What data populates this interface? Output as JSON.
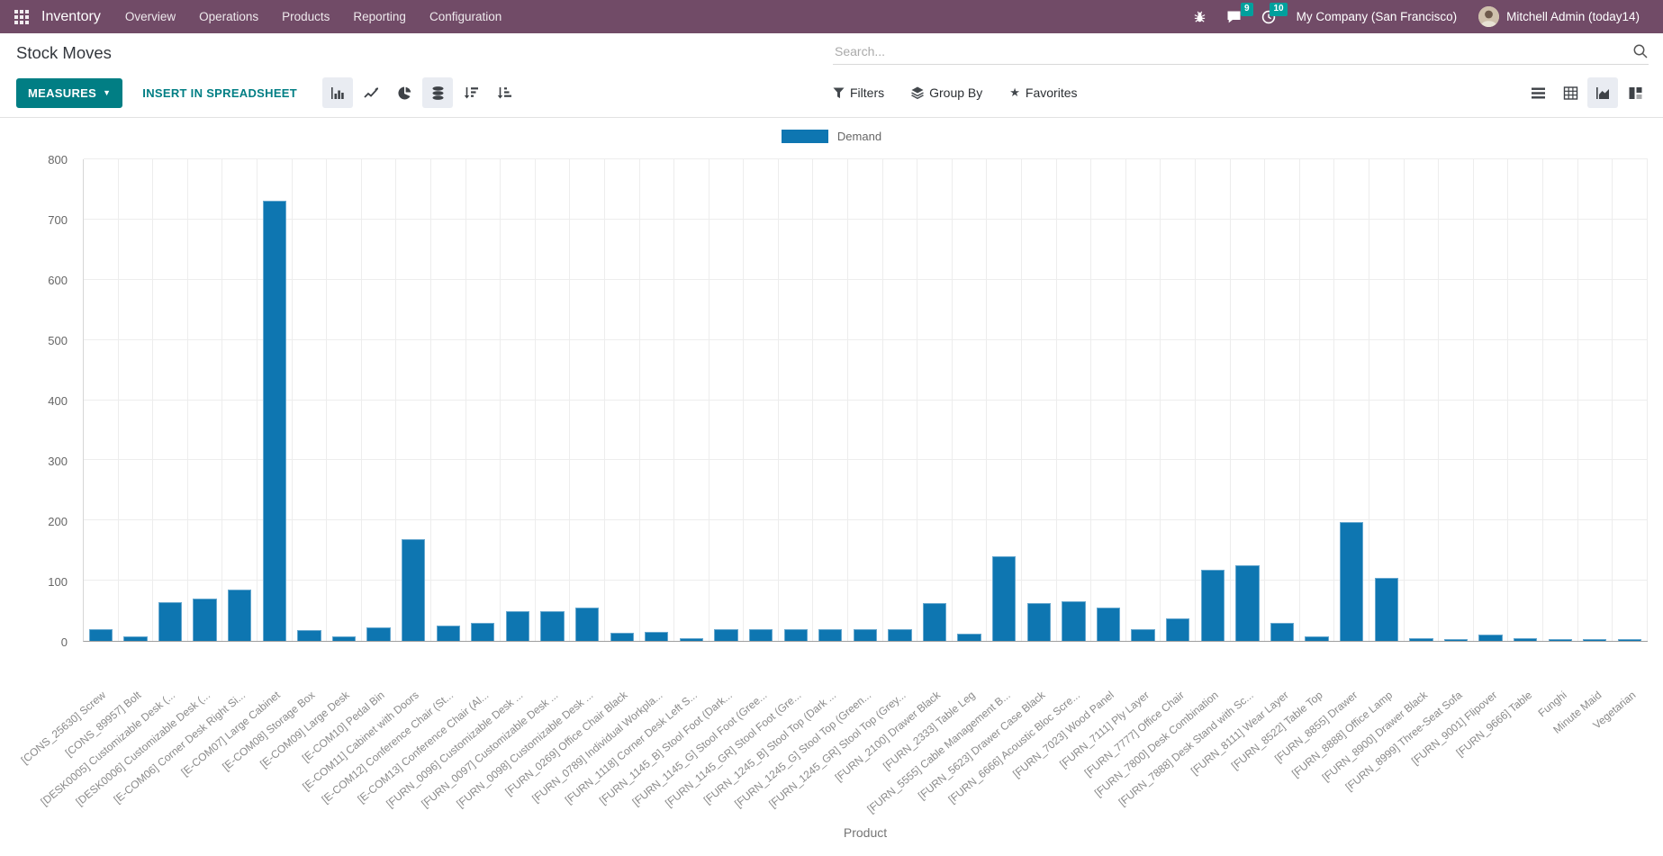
{
  "topbar": {
    "app_name": "Inventory",
    "menu_items": [
      "Overview",
      "Operations",
      "Products",
      "Reporting",
      "Configuration"
    ],
    "messages_badge": "9",
    "activities_badge": "10",
    "company": "My Company (San Francisco)",
    "user": "Mitchell Admin (today14)"
  },
  "control_panel": {
    "title": "Stock Moves",
    "search_placeholder": "Search...",
    "measures_label": "MEASURES",
    "insert_label": "INSERT IN SPREADSHEET",
    "filters_label": "Filters",
    "group_by_label": "Group By",
    "favorites_label": "Favorites"
  },
  "colors": {
    "topbar_bg": "#714B67",
    "accent_teal": "#017e84",
    "badge_teal": "#00a09d",
    "bar_fill": "#0e76b1",
    "bar_border": "#67a8cf"
  },
  "chart_data": {
    "type": "bar",
    "title": "",
    "legend": [
      "Demand"
    ],
    "legend_position": "top",
    "xlabel": "Product",
    "ylabel": "",
    "ylim": [
      0,
      800
    ],
    "ytick_step": 100,
    "grid": true,
    "bar_color": "#0e76b1",
    "bar_border": "#67a8cf",
    "categories": [
      "[CONS_25630] Screw",
      "[CONS_89957] Bolt",
      "[DESK0005] Customizable Desk (...",
      "[DESK0006] Customizable Desk (...",
      "[E-COM06] Corner Desk Right Si...",
      "[E-COM07] Large Cabinet",
      "[E-COM08] Storage Box",
      "[E-COM09] Large Desk",
      "[E-COM10] Pedal Bin",
      "[E-COM11] Cabinet with Doors",
      "[E-COM12] Conference Chair (St...",
      "[E-COM13] Conference Chair (Al...",
      "[FURN_0096] Customizable Desk ...",
      "[FURN_0097] Customizable Desk ...",
      "[FURN_0098] Customizable Desk ...",
      "[FURN_0269] Office Chair Black",
      "[FURN_0789] Individual Workpla...",
      "[FURN_1118] Corner Desk Left S...",
      "[FURN_1145_B] Stool Foot (Dark...",
      "[FURN_1145_G] Stool Foot (Gree...",
      "[FURN_1145_GR] Stool Foot (Gre...",
      "[FURN_1245_B] Stool Top (Dark ...",
      "[FURN_1245_G] Stool Top (Green...",
      "[FURN_1245_GR] Stool Top (Grey...",
      "[FURN_2100] Drawer Black",
      "[FURN_2333] Table Leg",
      "[FURN_5555] Cable Management B...",
      "[FURN_5623] Drawer Case Black",
      "[FURN_6666] Acoustic Bloc Scre...",
      "[FURN_7023] Wood Panel",
      "[FURN_7111] Ply Layer",
      "[FURN_7777] Office Chair",
      "[FURN_7800] Desk Combination",
      "[FURN_7888] Desk Stand with Sc...",
      "[FURN_8111] Wear Layer",
      "[FURN_8522] Table Top",
      "[FURN_8855] Drawer",
      "[FURN_8888] Office Lamp",
      "[FURN_8900] Drawer Black",
      "[FURN_8999] Three-Seat Sofa",
      "[FURN_9001] Flipover",
      "[FURN_9666] Table",
      "Funghi",
      "Minute Maid",
      "Vegetarian"
    ],
    "series": [
      {
        "name": "Demand",
        "values": [
          20,
          8,
          64,
          70,
          85,
          730,
          18,
          7,
          22,
          168,
          25,
          30,
          50,
          50,
          55,
          13,
          15,
          5,
          20,
          20,
          20,
          20,
          20,
          20,
          63,
          12,
          140,
          63,
          65,
          55,
          20,
          37,
          118,
          125,
          30,
          8,
          197,
          105,
          5,
          3,
          11,
          4,
          2,
          2,
          2
        ]
      }
    ]
  }
}
